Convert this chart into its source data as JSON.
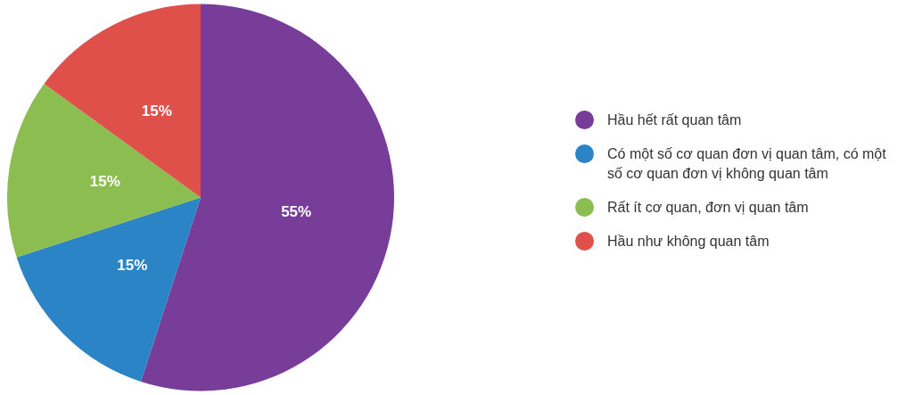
{
  "chart_data": {
    "type": "pie",
    "categories": [
      "Hầu hết rất quan tâm",
      "Có một số cơ quan đơn vị quan tâm, có một số cơ quan đơn vị không quan tâm",
      "Rất ít cơ quan, đơn vị quan tâm",
      "Hầu như không quan tâm"
    ],
    "values": [
      55,
      15,
      15,
      15
    ],
    "colors": [
      "#773d98",
      "#2a84c5",
      "#8cbd50",
      "#e0504b"
    ],
    "value_labels": [
      "55%",
      "15%",
      "15%",
      "15%"
    ],
    "legend": "right"
  }
}
